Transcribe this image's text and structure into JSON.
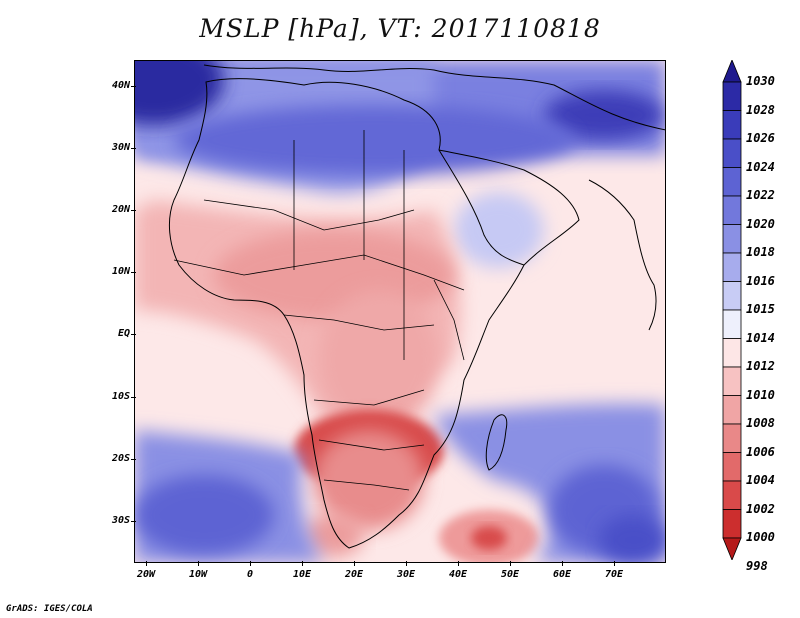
{
  "title": "MSLP [hPa], VT: 2017110818",
  "footer": "GrADS: IGES/COLA",
  "y_axis_labels": [
    "40N",
    "30N",
    "20N",
    "10N",
    "EQ",
    "10S",
    "20S",
    "30S"
  ],
  "x_axis_labels": [
    "20W",
    "10W",
    "0",
    "10E",
    "20E",
    "30E",
    "40E",
    "50E",
    "60E",
    "70E"
  ],
  "colorbar": {
    "labels": [
      "1030",
      "1028",
      "1026",
      "1024",
      "1022",
      "1020",
      "1018",
      "1016",
      "1015",
      "1014",
      "1012",
      "1010",
      "1008",
      "1006",
      "1004",
      "1002",
      "1000",
      "998"
    ],
    "colors": [
      "#1f1a8e",
      "#2c2aa6",
      "#3a3cba",
      "#4a4fc8",
      "#5d63d3",
      "#7278dc",
      "#8a90e4",
      "#a7aced",
      "#c8ccf5",
      "#eef0fc",
      "#fde6e6",
      "#f7c2c2",
      "#f0a5a5",
      "#e98888",
      "#e26a6a",
      "#d94a4a",
      "#cc2e2e",
      "#b51a1a"
    ]
  },
  "map_colors": {
    "high_deep": "#2b2aa0",
    "high_mid": "#6a70da",
    "high_light": "#a7aced",
    "neutral": "#fde8e8",
    "low_light": "#f6c0c0",
    "low_mid": "#ec9c9c",
    "low_deep": "#d84c4c",
    "boundary": "#000000"
  }
}
